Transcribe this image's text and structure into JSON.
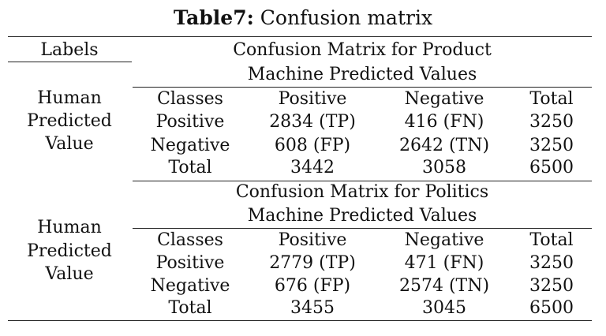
{
  "title": {
    "prefix": "Table7:",
    "text": " Confusion matrix"
  },
  "labels_header": "Labels",
  "sections": [
    {
      "heading": "Confusion Matrix for Product",
      "subheading": "Machine Predicted Values",
      "row_group_label": [
        "Human",
        "Predicted",
        "Value"
      ],
      "columns": [
        "Classes",
        "Positive",
        "Negative",
        "Total"
      ],
      "rows": [
        [
          "Positive",
          "2834 (TP)",
          "416 (FN)",
          "3250"
        ],
        [
          "Negative",
          "608 (FP)",
          "2642 (TN)",
          "3250"
        ],
        [
          "Total",
          "3442",
          "3058",
          "6500"
        ]
      ]
    },
    {
      "heading": "Confusion Matrix for Politics",
      "subheading": "Machine Predicted Values",
      "row_group_label": [
        "Human",
        "Predicted",
        "Value"
      ],
      "columns": [
        "Classes",
        "Positive",
        "Negative",
        "Total"
      ],
      "rows": [
        [
          "Positive",
          "2779 (TP)",
          "471 (FN)",
          "3250"
        ],
        [
          "Negative",
          "676 (FP)",
          "2574 (TN)",
          "3250"
        ],
        [
          "Total",
          "3455",
          "3045",
          "6500"
        ]
      ]
    }
  ]
}
